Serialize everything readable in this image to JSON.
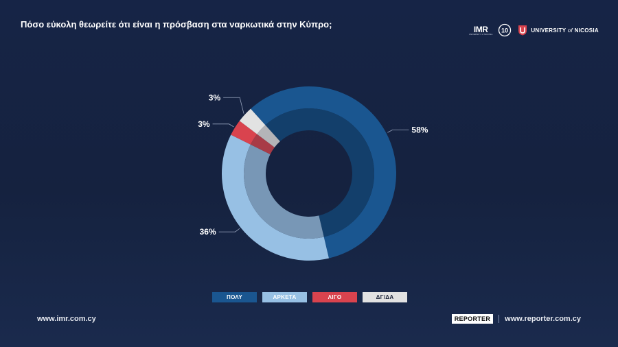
{
  "header": {
    "title": "Πόσο εύκολη θεωρείτε ότι είναι η πρόσβαση στα ναρκωτικά στην Κύπρο;",
    "logo_imr": "IMR",
    "logo_imr_sub": "UNIVERSITY of NICOSIA",
    "logo_anniversary": "10",
    "logo_university": "UNIVERSITY",
    "logo_university_of": "of",
    "logo_university_city": "NICOSIA"
  },
  "chart_data": {
    "type": "pie",
    "donut": true,
    "categories": [
      "ΠΟΛΥ",
      "ΑΡΚΕΤΑ",
      "ΛΙΓΟ",
      "ΔΓ/ΔΑ"
    ],
    "values": [
      58,
      36,
      3,
      3
    ],
    "labels": [
      "58%",
      "36%",
      "3%",
      "3%"
    ],
    "colors": [
      "#1a5690",
      "#97c0e4",
      "#d9434e",
      "#e2e2e2"
    ],
    "inner_colors": [
      "#133f6b",
      "#7897b6",
      "#a83b47",
      "#b4b4b8"
    ],
    "legend_position": "bottom"
  },
  "footer": {
    "left_url": "www.imr.com.cy",
    "reporter_logo": "REPORTER",
    "right_url": "www.reporter.com.cy"
  }
}
